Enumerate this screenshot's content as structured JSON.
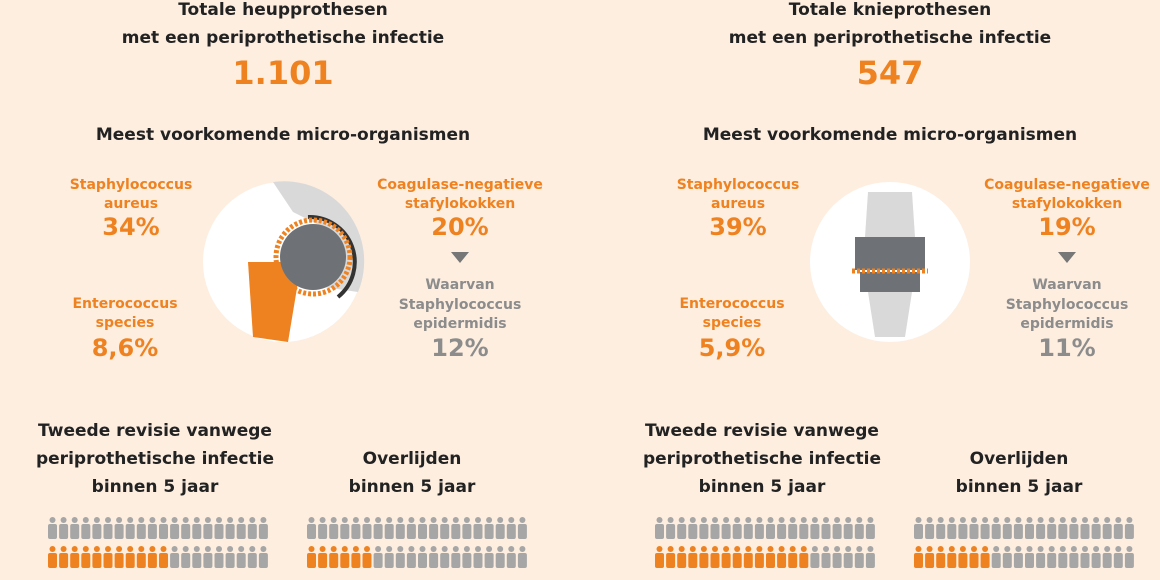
{
  "panels": [
    {
      "title": [
        "Totale heupprothesen",
        "met een periprothetische infectie"
      ],
      "total": "1.101",
      "subtitle": "Meest voorkomende micro-organismen",
      "organisms": [
        {
          "name": [
            "Staphylococcus",
            "aureus"
          ],
          "pct": "34%"
        },
        {
          "name": [
            "Enterococcus",
            "species"
          ],
          "pct": "8,6%"
        },
        {
          "name": [
            "Coagulase-negatieve",
            "stafylokokken"
          ],
          "pct": "20%"
        }
      ],
      "subset": {
        "name": [
          "Waarvan",
          "Staphylococcus",
          "epidermidis"
        ],
        "pct": "12%"
      },
      "outcomes": [
        {
          "label": [
            "Tweede revisie vanwege",
            "periprothetische infectie",
            "binnen 5 jaar"
          ],
          "icons_total": 40,
          "icons_highlighted": 11
        },
        {
          "label": [
            "Overlijden",
            "binnen 5 jaar"
          ],
          "icons_total": 40,
          "icons_highlighted": 6
        }
      ]
    },
    {
      "title": [
        "Totale knieprothesen",
        "met een periprothetische infectie"
      ],
      "total": "547",
      "subtitle": "Meest voorkomende micro-organismen",
      "organisms": [
        {
          "name": [
            "Staphylococcus",
            "aureus"
          ],
          "pct": "39%"
        },
        {
          "name": [
            "Enterococcus",
            "species"
          ],
          "pct": "5,9%"
        },
        {
          "name": [
            "Coagulase-negatieve",
            "stafylokokken"
          ],
          "pct": "19%"
        }
      ],
      "subset": {
        "name": [
          "Waarvan",
          "Staphylococcus",
          "epidermidis"
        ],
        "pct": "11%"
      },
      "outcomes": [
        {
          "label": [
            "Tweede revisie vanwege",
            "periprothetische infectie",
            "binnen 5 jaar"
          ],
          "icons_total": 40,
          "icons_highlighted": 14
        },
        {
          "label": [
            "Overlijden",
            "binnen 5 jaar"
          ],
          "icons_total": 40,
          "icons_highlighted": 7
        }
      ]
    }
  ]
}
